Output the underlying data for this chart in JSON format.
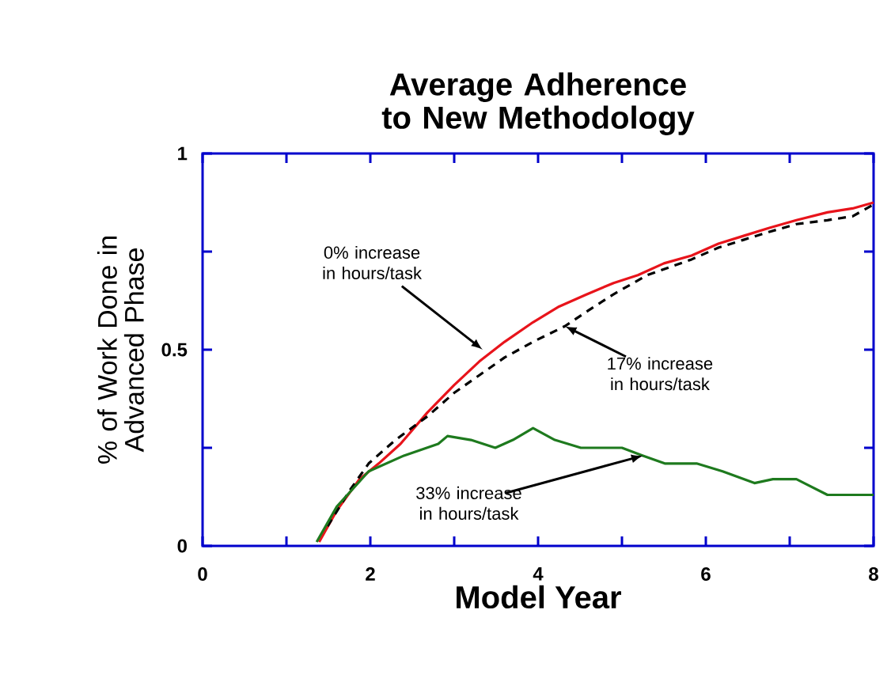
{
  "chart_data": {
    "type": "line",
    "title": "Average Adherence to New Methodology",
    "xlabel": "Model Year",
    "ylabel": "% of Work Done in Advanced Phase",
    "xlim": [
      0,
      8
    ],
    "ylim": [
      0,
      1
    ],
    "xticks": [
      0,
      {
        "value": 1,
        "label": null
      },
      2,
      {
        "value": 3,
        "label": null
      },
      4,
      {
        "value": 5,
        "label": null
      },
      6,
      {
        "value": 7,
        "label": null
      },
      8
    ],
    "yticks": [
      0,
      {
        "value": 0.25,
        "label": null
      },
      0.5,
      {
        "value": 0.75,
        "label": null
      },
      1
    ],
    "marker": "none",
    "series": [
      {
        "color": "#e8141b",
        "line_style": "solid",
        "x": [
          1.39,
          1.6,
          1.87,
          2.1,
          2.36,
          2.68,
          3.0,
          3.3,
          3.6,
          3.94,
          4.25,
          4.57,
          4.9,
          5.19,
          5.5,
          5.83,
          6.15,
          6.45,
          6.75,
          7.08,
          7.45,
          7.75,
          8
        ],
        "values": [
          0.01,
          0.09,
          0.17,
          0.21,
          0.26,
          0.34,
          0.41,
          0.47,
          0.52,
          0.57,
          0.61,
          0.64,
          0.67,
          0.69,
          0.72,
          0.74,
          0.77,
          0.79,
          0.81,
          0.83,
          0.85,
          0.86,
          0.875
        ]
      },
      {
        "color": "#000000",
        "line_style": "dashed",
        "x": [
          1.49,
          1.75,
          1.98,
          2.3,
          2.68,
          3.0,
          3.3,
          3.6,
          3.94,
          4.32,
          4.6,
          4.89,
          5.3,
          5.83,
          6.15,
          6.45,
          6.75,
          7.08,
          7.45,
          7.75,
          8
        ],
        "values": [
          0.05,
          0.14,
          0.21,
          0.27,
          0.33,
          0.39,
          0.435,
          0.48,
          0.52,
          0.56,
          0.6,
          0.64,
          0.69,
          0.73,
          0.76,
          0.78,
          0.8,
          0.82,
          0.83,
          0.84,
          0.87
        ]
      },
      {
        "color": "#1e7a1e",
        "line_style": "solid",
        "x": [
          1.36,
          1.6,
          1.98,
          2.4,
          2.81,
          2.92,
          3.2,
          3.49,
          3.7,
          3.94,
          4.2,
          4.51,
          5.0,
          5.25,
          5.51,
          5.89,
          6.2,
          6.58,
          6.8,
          7.08,
          7.45,
          8
        ],
        "values": [
          0.01,
          0.1,
          0.19,
          0.23,
          0.26,
          0.28,
          0.27,
          0.25,
          0.27,
          0.3,
          0.27,
          0.25,
          0.25,
          0.23,
          0.21,
          0.21,
          0.19,
          0.16,
          0.17,
          0.17,
          0.13,
          0.13
        ]
      }
    ],
    "annotations": [
      {
        "text": "0% increase in hours/task",
        "x": 3.34,
        "y": 0.5
      },
      {
        "text": "17% increase in hours/task",
        "x": 4.32,
        "y": 0.56
      },
      {
        "text": "33% increase in hours/task",
        "x": 5.25,
        "y": 0.23
      }
    ]
  }
}
